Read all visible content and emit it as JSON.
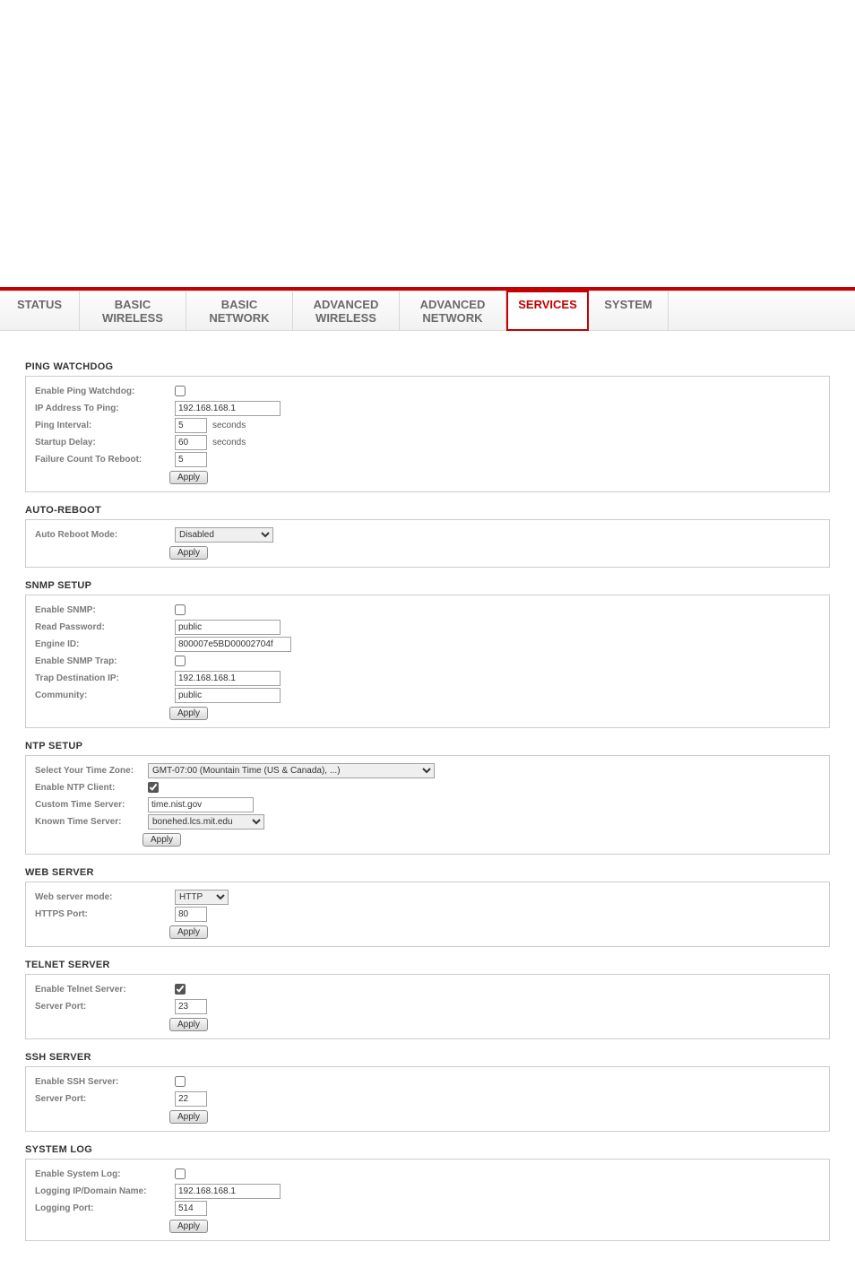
{
  "colors": {
    "accent_red": "#c40000",
    "tab_text": "#6a6a6a",
    "border": "#cccccc",
    "label_grey": "#7a7a7a",
    "text": "#333333",
    "bg": "#ffffff"
  },
  "tabs": [
    {
      "l1": "STATUS",
      "l2": "",
      "cls": "single"
    },
    {
      "l1": "BASIC",
      "l2": "WIRELESS",
      "cls": "double"
    },
    {
      "l1": "BASIC",
      "l2": "NETWORK",
      "cls": "double"
    },
    {
      "l1": "ADVANCED",
      "l2": "WIRELESS",
      "cls": "double"
    },
    {
      "l1": "ADVANCED",
      "l2": "NETWORK",
      "cls": "double"
    },
    {
      "l1": "SERVICES",
      "l2": "",
      "cls": "single",
      "active": true
    },
    {
      "l1": "SYSTEM",
      "l2": "",
      "cls": "single"
    }
  ],
  "sections": {
    "ping_watchdog": {
      "title": "PING WATCHDOG",
      "enable_label": "Enable Ping Watchdog:",
      "enable_checked": false,
      "ip_label": "IP Address To Ping:",
      "ip_value": "192.168.168.1",
      "interval_label": "Ping Interval:",
      "interval_value": "5",
      "interval_unit": "seconds",
      "delay_label": "Startup Delay:",
      "delay_value": "60",
      "delay_unit": "seconds",
      "failcount_label": "Failure Count To Reboot:",
      "failcount_value": "5",
      "apply": "Apply"
    },
    "auto_reboot": {
      "title": "AUTO-REBOOT",
      "mode_label": "Auto Reboot Mode:",
      "mode_value": "Disabled",
      "apply": "Apply"
    },
    "snmp": {
      "title": "SNMP SETUP",
      "enable_label": "Enable SNMP:",
      "enable_checked": false,
      "readpw_label": "Read Password:",
      "readpw_value": "public",
      "engine_label": "Engine ID:",
      "engine_value": "800007e5BD00002704f",
      "trap_label": "Enable SNMP Trap:",
      "trap_checked": false,
      "trapip_label": "Trap Destination IP:",
      "trapip_value": "192.168.168.1",
      "community_label": "Community:",
      "community_value": "public",
      "apply": "Apply"
    },
    "ntp": {
      "title": "NTP SETUP",
      "tz_label": "Select Your Time Zone:",
      "tz_value": "GMT-07:00 (Mountain Time (US & Canada), ...)",
      "enable_label": "Enable NTP Client:",
      "enable_checked": true,
      "custom_label": "Custom Time Server:",
      "custom_value": "time.nist.gov",
      "known_label": "Known Time Server:",
      "known_value": "bonehed.lcs.mit.edu",
      "apply": "Apply"
    },
    "web": {
      "title": "WEB SERVER",
      "mode_label": "Web server mode:",
      "mode_value": "HTTP",
      "port_label": "HTTPS Port:",
      "port_value": "80",
      "apply": "Apply"
    },
    "telnet": {
      "title": "TELNET SERVER",
      "enable_label": "Enable Telnet Server:",
      "enable_checked": true,
      "port_label": "Server Port:",
      "port_value": "23",
      "apply": "Apply"
    },
    "ssh": {
      "title": "SSH SERVER",
      "enable_label": "Enable SSH Server:",
      "enable_checked": false,
      "port_label": "Server Port:",
      "port_value": "22",
      "apply": "Apply"
    },
    "syslog": {
      "title": "SYSTEM LOG",
      "enable_label": "Enable System Log:",
      "enable_checked": false,
      "host_label": "Logging IP/Domain Name:",
      "host_value": "192.168.168.1",
      "port_label": "Logging Port:",
      "port_value": "514",
      "apply": "Apply"
    }
  }
}
